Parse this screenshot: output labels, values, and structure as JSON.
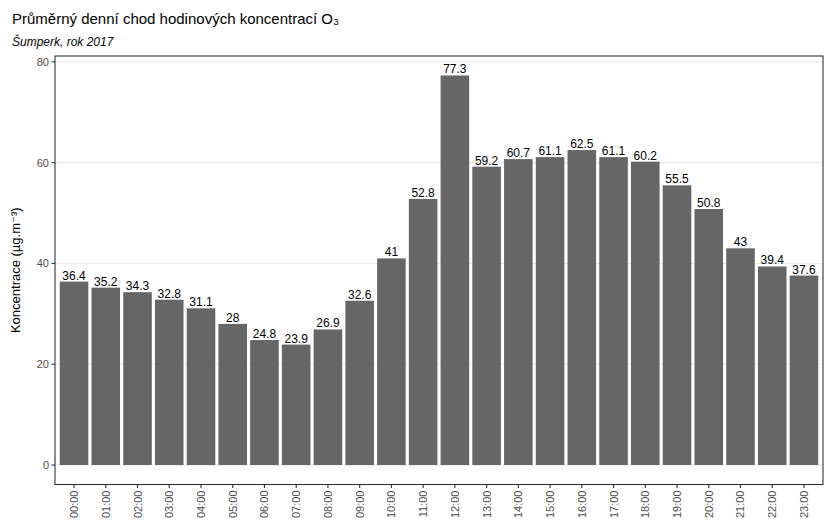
{
  "chart_data": {
    "type": "bar",
    "title": "Průměrný denní chod hodinových koncentrací O₃",
    "subtitle": "Šumperk, rok 2017",
    "y_label": "Koncentrace (µg.m⁻³)",
    "categories": [
      "00:00",
      "01:00",
      "02:00",
      "03:00",
      "04:00",
      "05:00",
      "06:00",
      "07:00",
      "08:00",
      "09:00",
      "10:00",
      "11:00",
      "12:00",
      "13:00",
      "14:00",
      "15:00",
      "16:00",
      "17:00",
      "18:00",
      "19:00",
      "20:00",
      "21:00",
      "22:00",
      "23:00"
    ],
    "values": [
      36.4,
      35.2,
      34.3,
      32.8,
      31.1,
      28,
      24.8,
      23.9,
      26.9,
      32.6,
      41,
      52.8,
      77.3,
      59.2,
      60.7,
      61.1,
      62.5,
      61.1,
      60.2,
      55.5,
      50.8,
      43,
      39.4,
      37.6
    ],
    "color": "#666666",
    "ylim": [
      -3.865,
      81.165
    ],
    "yticks": [
      0,
      20,
      40,
      60,
      80
    ],
    "grid": true,
    "data_labels": true
  }
}
